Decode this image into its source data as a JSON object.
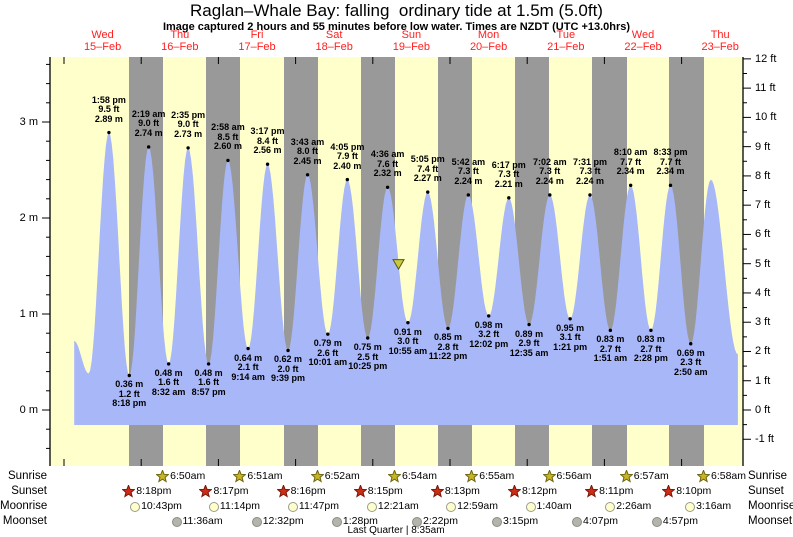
{
  "title": "Raglan–Whale Bay: falling  ordinary tide at 1.5m (5.0ft)",
  "subtitle": "Image captured 2 hours and 55 minutes before low water. Times are NZDT (UTC +13.0hrs)",
  "days": [
    {
      "dow": "Wed",
      "date": "15–Feb"
    },
    {
      "dow": "Thu",
      "date": "16–Feb"
    },
    {
      "dow": "Fri",
      "date": "17–Feb"
    },
    {
      "dow": "Sat",
      "date": "18–Feb"
    },
    {
      "dow": "Sun",
      "date": "19–Feb"
    },
    {
      "dow": "Mon",
      "date": "20–Feb"
    },
    {
      "dow": "Tue",
      "date": "21–Feb"
    },
    {
      "dow": "Wed",
      "date": "22–Feb"
    },
    {
      "dow": "Thu",
      "date": "23–Feb"
    }
  ],
  "row_labels": [
    "Sunrise",
    "Sunset",
    "Moonrise",
    "Moonset"
  ],
  "chart_data": {
    "type": "area",
    "title": "Raglan–Whale Bay: falling ordinary tide at 1.5m (5.0ft)",
    "x_axis": "days Wed 15-Feb through Thu 23-Feb",
    "y_axis_left_unit": "m",
    "y_axis_right_unit": "ft",
    "y_ticks_m": [
      "0 m",
      "1 m",
      "2 m",
      "3 m"
    ],
    "y_ticks_ft": [
      "-1 ft",
      "0 ft",
      "1 ft",
      "2 ft",
      "3 ft",
      "4 ft",
      "5 ft",
      "6 ft",
      "7 ft",
      "8 ft",
      "9 ft",
      "10 ft",
      "11 ft",
      "12 ft"
    ],
    "ylim_m": [
      -0.58,
      3.68
    ],
    "tide_events": [
      {
        "type": "high",
        "day": 0,
        "time": "1:58 pm",
        "ft": "9.5",
        "m": "2.89"
      },
      {
        "type": "low",
        "day": 0,
        "time": "8:18 pm",
        "ft": "1.2",
        "m": "0.36"
      },
      {
        "type": "high",
        "day": 1,
        "time": "2:19 am",
        "ft": "9.0",
        "m": "2.74"
      },
      {
        "type": "low",
        "day": 1,
        "time": "8:32 am",
        "ft": "1.6",
        "m": "0.48"
      },
      {
        "type": "high",
        "day": 1,
        "time": "2:35 pm",
        "ft": "9.0",
        "m": "2.73"
      },
      {
        "type": "low",
        "day": 1,
        "time": "8:57 pm",
        "ft": "1.6",
        "m": "0.48"
      },
      {
        "type": "high",
        "day": 2,
        "time": "2:58 am",
        "ft": "8.5",
        "m": "2.60"
      },
      {
        "type": "low",
        "day": 2,
        "time": "9:14 am",
        "ft": "2.1",
        "m": "0.64"
      },
      {
        "type": "high",
        "day": 2,
        "time": "3:17 pm",
        "ft": "8.4",
        "m": "2.56"
      },
      {
        "type": "low",
        "day": 2,
        "time": "9:39 pm",
        "ft": "2.0",
        "m": "0.62"
      },
      {
        "type": "high",
        "day": 3,
        "time": "3:43 am",
        "ft": "8.0",
        "m": "2.45"
      },
      {
        "type": "low",
        "day": 3,
        "time": "10:01 am",
        "ft": "2.6",
        "m": "0.79"
      },
      {
        "type": "high",
        "day": 3,
        "time": "4:05 pm",
        "ft": "7.9",
        "m": "2.40"
      },
      {
        "type": "low",
        "day": 3,
        "time": "10:25 pm",
        "ft": "2.5",
        "m": "0.75"
      },
      {
        "type": "high",
        "day": 4,
        "time": "4:36 am",
        "ft": "7.6",
        "m": "2.32"
      },
      {
        "type": "low",
        "day": 4,
        "time": "10:55 am",
        "ft": "3.0",
        "m": "0.91"
      },
      {
        "type": "high",
        "day": 4,
        "time": "5:05 pm",
        "ft": "7.4",
        "m": "2.27"
      },
      {
        "type": "low",
        "day": 4,
        "time": "11:22 pm",
        "ft": "2.8",
        "m": "0.85"
      },
      {
        "type": "high",
        "day": 5,
        "time": "5:42 am",
        "ft": "7.3",
        "m": "2.24"
      },
      {
        "type": "low",
        "day": 5,
        "time": "12:02 pm",
        "ft": "3.2",
        "m": "0.98"
      },
      {
        "type": "high",
        "day": 5,
        "time": "6:17 pm",
        "ft": "7.3",
        "m": "2.21"
      },
      {
        "type": "low",
        "day": 6,
        "time": "12:35 am",
        "ft": "2.9",
        "m": "0.89"
      },
      {
        "type": "high",
        "day": 6,
        "time": "7:02 am",
        "ft": "7.3",
        "m": "2.24"
      },
      {
        "type": "low",
        "day": 6,
        "time": "1:21 pm",
        "ft": "3.1",
        "m": "0.95"
      },
      {
        "type": "high",
        "day": 6,
        "time": "7:31 pm",
        "ft": "7.3",
        "m": "2.24"
      },
      {
        "type": "low",
        "day": 7,
        "time": "1:51 am",
        "ft": "2.7",
        "m": "0.83"
      },
      {
        "type": "high",
        "day": 7,
        "time": "8:10 am",
        "ft": "7.7",
        "m": "2.34"
      },
      {
        "type": "low",
        "day": 7,
        "time": "2:28 pm",
        "ft": "2.7",
        "m": "0.83"
      },
      {
        "type": "high",
        "day": 7,
        "time": "8:33 pm",
        "ft": "7.7",
        "m": "2.34"
      },
      {
        "type": "low",
        "day": 8,
        "time": "2:50 am",
        "ft": "2.3",
        "m": "0.69"
      }
    ],
    "unlabeled_shape_points": [
      {
        "day": 0,
        "time": "3:10 am",
        "m": "0.72"
      },
      {
        "day": 0,
        "time": "7:40 am",
        "m": "0.38"
      },
      {
        "day": 8,
        "time": "9:05 am",
        "m": "2.40"
      },
      {
        "day": 8,
        "time": "5:30 pm",
        "m": "0.58"
      }
    ],
    "now_marker": {
      "day": 4,
      "time": "8:00 am",
      "m": "1.52",
      "meaning": "current tide level 1.5m (5.0ft), falling"
    },
    "sun_moon": {
      "sunrise": [
        {
          "day": 1,
          "time": "6:50am"
        },
        {
          "day": 2,
          "time": "6:51am"
        },
        {
          "day": 3,
          "time": "6:52am"
        },
        {
          "day": 4,
          "time": "6:54am"
        },
        {
          "day": 5,
          "time": "6:55am"
        },
        {
          "day": 6,
          "time": "6:56am"
        },
        {
          "day": 7,
          "time": "6:57am"
        },
        {
          "day": 8,
          "time": "6:58am"
        }
      ],
      "sunset": [
        {
          "day": 0,
          "time": "8:18pm"
        },
        {
          "day": 1,
          "time": "8:17pm"
        },
        {
          "day": 2,
          "time": "8:16pm"
        },
        {
          "day": 3,
          "time": "8:15pm"
        },
        {
          "day": 4,
          "time": "8:13pm"
        },
        {
          "day": 5,
          "time": "8:12pm"
        },
        {
          "day": 6,
          "time": "8:11pm"
        },
        {
          "day": 7,
          "time": "8:10pm"
        }
      ],
      "moonrise": [
        {
          "day": 0,
          "time": "10:43pm"
        },
        {
          "day": 1,
          "time": "11:14pm"
        },
        {
          "day": 2,
          "time": "11:47pm"
        },
        {
          "day": 4,
          "time": "12:21am"
        },
        {
          "day": 5,
          "time": "12:59am"
        },
        {
          "day": 6,
          "time": "1:40am"
        },
        {
          "day": 7,
          "time": "2:26am"
        },
        {
          "day": 8,
          "time": "3:16am"
        }
      ],
      "moonset": [
        {
          "day": 1,
          "time": "11:36am"
        },
        {
          "day": 2,
          "time": "12:32pm"
        },
        {
          "day": 3,
          "time": "1:28pm"
        },
        {
          "day": 4,
          "time": "2:22pm"
        },
        {
          "day": 5,
          "time": "3:15pm"
        },
        {
          "day": 6,
          "time": "4:07pm"
        },
        {
          "day": 7,
          "time": "4:57pm"
        }
      ]
    },
    "moon_phase": "Last Quarter | 8:35am"
  },
  "colors": {
    "day_band": "#ffffcc",
    "night_band": "#999999",
    "tide_fill": "#a8b7f8",
    "day_label_red": "#ff1f1f",
    "axis_black": "#000000",
    "sunrise_star_fill": "#c6b525",
    "sunrise_star_stroke": "#6e6410",
    "sunset_star_fill": "#cb2d15",
    "sunset_star_stroke": "#7c150a",
    "moonrise_fill": "#ffffcc",
    "moonrise_border": "#9a9a8e",
    "moonset_fill": "#b4b4ac",
    "moonset_border": "#8c8c84",
    "marker_fill": "#c9c93e",
    "marker_stroke": "#55551a"
  }
}
